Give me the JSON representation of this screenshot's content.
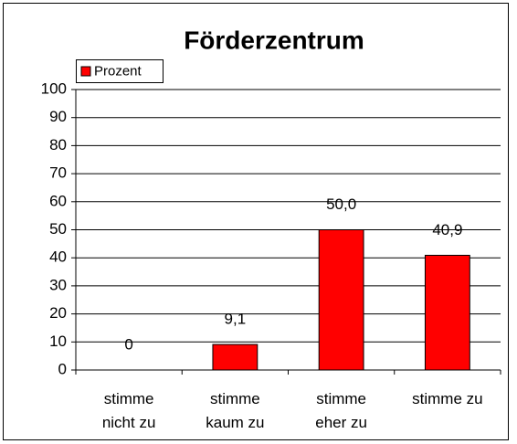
{
  "chart_data": {
    "type": "bar",
    "title": "Förderzentrum",
    "categories": [
      "stimme nicht zu",
      "stimme kaum zu",
      "stimme eher zu",
      "stimme zu"
    ],
    "series": [
      {
        "name": "Prozent",
        "color": "#ff0000",
        "values": [
          0,
          9.1,
          50,
          40.9
        ],
        "value_labels": [
          "0",
          "9,1",
          "50,0",
          "40,9"
        ]
      }
    ],
    "ylim": [
      0,
      100
    ],
    "yticks": [
      0,
      10,
      20,
      30,
      40,
      50,
      60,
      70,
      80,
      90,
      100
    ],
    "grid": true,
    "legend": "top-left"
  }
}
